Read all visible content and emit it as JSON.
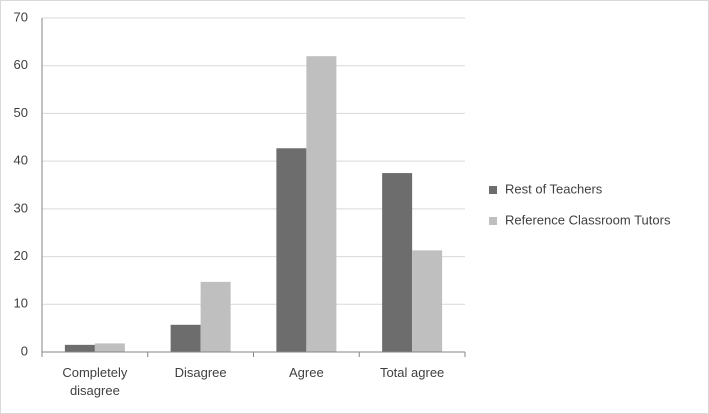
{
  "chart_data": {
    "type": "bar",
    "categories": [
      "Completely disagree",
      "Disagree",
      "Agree",
      "Total agree"
    ],
    "series": [
      {
        "name": "Rest of Teachers",
        "color": "#6d6d6d",
        "values": [
          1.5,
          5.7,
          42.7,
          37.5
        ]
      },
      {
        "name": "Reference Classroom Tutors",
        "color": "#bfbfbf",
        "values": [
          1.8,
          14.7,
          62,
          21.3
        ]
      }
    ],
    "ylim": [
      0,
      70
    ],
    "yticks": [
      0,
      10,
      20,
      30,
      40,
      50,
      60,
      70
    ],
    "grid": true,
    "legend": "right"
  }
}
